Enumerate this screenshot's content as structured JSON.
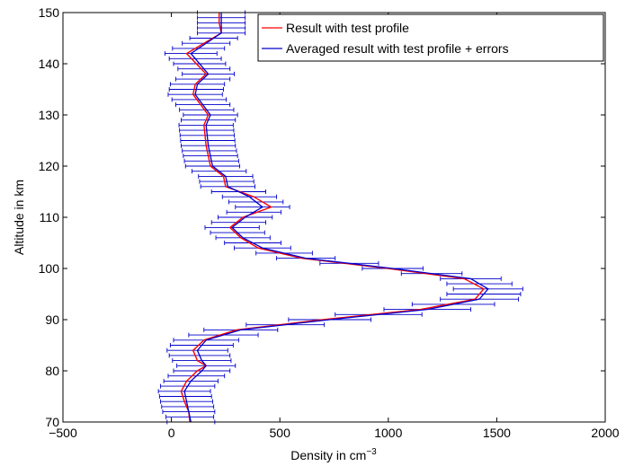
{
  "chart_data": {
    "type": "line",
    "title": "",
    "xlabel": "Density in cm",
    "xlabel_superscript": "−3",
    "ylabel": "Altitude in km",
    "xlim": [
      -500,
      2000
    ],
    "ylim": [
      70,
      150
    ],
    "xticks": [
      -500,
      0,
      500,
      1000,
      1500,
      2000
    ],
    "xtick_labels": [
      "−500",
      "0",
      "500",
      "1000",
      "1500",
      "2000"
    ],
    "yticks": [
      70,
      80,
      90,
      100,
      110,
      120,
      130,
      140,
      150
    ],
    "ytick_labels": [
      "70",
      "80",
      "90",
      "100",
      "110",
      "120",
      "130",
      "140",
      "150"
    ],
    "grid": false,
    "legend_position": "top-right",
    "colors": {
      "red_line": "#ff0000",
      "blue_line": "#0000cc",
      "errorbar": "#0000cc"
    },
    "series": [
      {
        "name": "Result with test profile",
        "color": "#ff0000",
        "points": [
          [
            85,
            70
          ],
          [
            80,
            72
          ],
          [
            60,
            74
          ],
          [
            45,
            76
          ],
          [
            70,
            78
          ],
          [
            120,
            80
          ],
          [
            160,
            81
          ],
          [
            120,
            82
          ],
          [
            100,
            84
          ],
          [
            150,
            86
          ],
          [
            300,
            88
          ],
          [
            700,
            90
          ],
          [
            1150,
            92
          ],
          [
            1400,
            94
          ],
          [
            1440,
            96
          ],
          [
            1350,
            98
          ],
          [
            1000,
            100
          ],
          [
            600,
            102
          ],
          [
            400,
            104
          ],
          [
            320,
            106
          ],
          [
            270,
            108
          ],
          [
            330,
            110
          ],
          [
            460,
            112
          ],
          [
            380,
            114
          ],
          [
            250,
            116
          ],
          [
            240,
            118
          ],
          [
            180,
            120
          ],
          [
            160,
            124
          ],
          [
            150,
            128
          ],
          [
            170,
            130
          ],
          [
            100,
            134
          ],
          [
            110,
            136
          ],
          [
            160,
            138
          ],
          [
            70,
            142
          ],
          [
            150,
            144
          ],
          [
            230,
            146
          ],
          [
            220,
            148
          ],
          [
            220,
            150
          ]
        ]
      },
      {
        "name": "Averaged result with test profile + errors",
        "color": "#0000cc",
        "points": [
          [
            90,
            70
          ],
          [
            80,
            72
          ],
          [
            70,
            74
          ],
          [
            60,
            76
          ],
          [
            90,
            78
          ],
          [
            140,
            80
          ],
          [
            160,
            81
          ],
          [
            140,
            82
          ],
          [
            120,
            84
          ],
          [
            160,
            86
          ],
          [
            320,
            88
          ],
          [
            730,
            90
          ],
          [
            1180,
            92
          ],
          [
            1420,
            94
          ],
          [
            1460,
            96
          ],
          [
            1380,
            98
          ],
          [
            1020,
            100
          ],
          [
            620,
            102
          ],
          [
            420,
            104
          ],
          [
            330,
            106
          ],
          [
            280,
            108
          ],
          [
            340,
            110
          ],
          [
            420,
            112
          ],
          [
            360,
            114
          ],
          [
            260,
            116
          ],
          [
            250,
            118
          ],
          [
            190,
            120
          ],
          [
            170,
            124
          ],
          [
            160,
            128
          ],
          [
            180,
            130
          ],
          [
            110,
            134
          ],
          [
            120,
            136
          ],
          [
            170,
            138
          ],
          [
            90,
            142
          ],
          [
            160,
            144
          ],
          [
            230,
            146
          ],
          [
            230,
            148
          ],
          [
            230,
            150
          ]
        ]
      }
    ],
    "errorbars": {
      "series": "Averaged result with test profile + errors",
      "altitudes": [
        70,
        71,
        72,
        73,
        74,
        75,
        76,
        77,
        78,
        79,
        80,
        81,
        82,
        83,
        84,
        85,
        86,
        87,
        88,
        89,
        90,
        91,
        92,
        93,
        94,
        95,
        96,
        97,
        98,
        99,
        100,
        101,
        102,
        103,
        104,
        105,
        106,
        107,
        108,
        109,
        110,
        111,
        112,
        113,
        114,
        115,
        116,
        117,
        118,
        119,
        120,
        121,
        122,
        123,
        124,
        125,
        126,
        127,
        128,
        129,
        130,
        131,
        132,
        133,
        134,
        135,
        136,
        137,
        138,
        139,
        140,
        141,
        142,
        143,
        144,
        145,
        146,
        147,
        148,
        149,
        150
      ],
      "half_widths": [
        110,
        110,
        120,
        120,
        120,
        120,
        120,
        125,
        125,
        130,
        130,
        135,
        135,
        140,
        140,
        145,
        150,
        160,
        170,
        180,
        190,
        200,
        200,
        190,
        180,
        170,
        160,
        150,
        140,
        140,
        140,
        135,
        135,
        130,
        130,
        130,
        125,
        125,
        125,
        125,
        125,
        125,
        125,
        125,
        125,
        125,
        125,
        125,
        125,
        125,
        125,
        125,
        125,
        125,
        125,
        125,
        125,
        125,
        125,
        125,
        125,
        125,
        125,
        125,
        125,
        125,
        125,
        125,
        120,
        120,
        120,
        120,
        120,
        120,
        110,
        110,
        110,
        110,
        110,
        110,
        110
      ]
    }
  }
}
